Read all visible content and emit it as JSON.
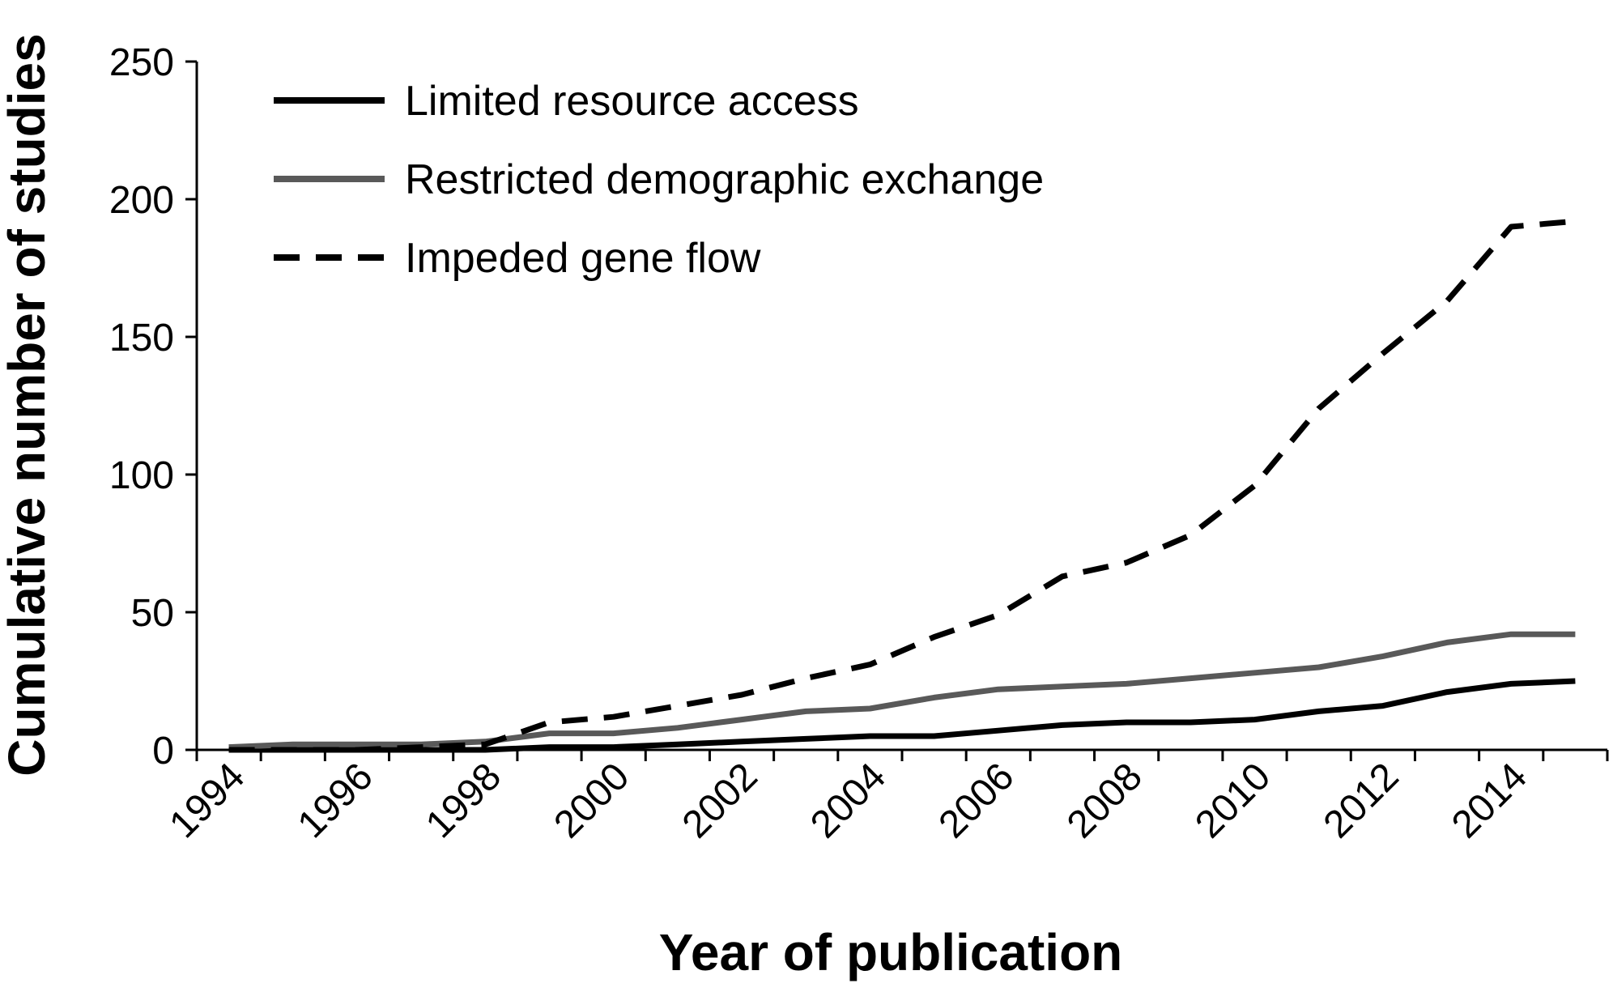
{
  "chart_data": {
    "type": "line",
    "title": "",
    "xlabel": "Year of publication",
    "ylabel": "Cumulative number of studies",
    "x": [
      1994,
      1995,
      1996,
      1997,
      1998,
      1999,
      2000,
      2001,
      2002,
      2003,
      2004,
      2005,
      2006,
      2007,
      2008,
      2009,
      2010,
      2011,
      2012,
      2013,
      2014,
      2015
    ],
    "xticks": [
      "1994",
      "1996",
      "1998",
      "2000",
      "2002",
      "2004",
      "2006",
      "2008",
      "2010",
      "2012",
      "2014"
    ],
    "yticks": [
      "0",
      "50",
      "100",
      "150",
      "200",
      "250"
    ],
    "xlim": [
      1993.5,
      2015.5
    ],
    "ylim": [
      0,
      250
    ],
    "grid": false,
    "legend_position": "top-left",
    "series": [
      {
        "name": "Limited resource access",
        "color": "#000000",
        "style": "solid",
        "values": [
          0,
          0,
          0,
          0,
          0,
          1,
          1,
          2,
          3,
          4,
          5,
          5,
          7,
          9,
          10,
          10,
          11,
          14,
          16,
          21,
          24,
          25
        ]
      },
      {
        "name": "Restricted demographic exchange",
        "color": "#595959",
        "style": "solid",
        "values": [
          1,
          2,
          2,
          2,
          3,
          6,
          6,
          8,
          11,
          14,
          15,
          19,
          22,
          23,
          24,
          26,
          28,
          30,
          34,
          39,
          42,
          42
        ]
      },
      {
        "name": "Impeded gene flow",
        "color": "#000000",
        "style": "dashed",
        "values": [
          0,
          0,
          0,
          1,
          2,
          10,
          12,
          16,
          20,
          26,
          31,
          41,
          49,
          63,
          68,
          78,
          96,
          124,
          144,
          163,
          190,
          192
        ]
      }
    ]
  }
}
